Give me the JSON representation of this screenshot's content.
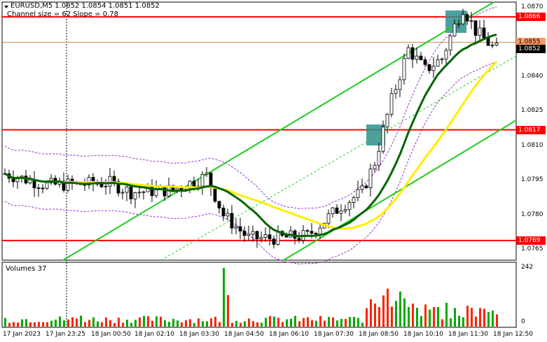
{
  "header": {
    "symbol_line": "EURUSD,M5  1.0852 1.0854 1.0851 1.0852",
    "channel_line": "Channel size = 62 Slope = 0.78"
  },
  "volumes": {
    "label": "Volumes 37",
    "scale_max": "242",
    "scale_min": "0"
  },
  "colors": {
    "background": "#ffffff",
    "candles": "#000000",
    "level_line": "#ff0000",
    "channel": "#22cc22",
    "ma_fast": "#006400",
    "ma_slow": "#ffee00",
    "envelope": "#9933cc",
    "volume_up": "#00aa00",
    "volume_down": "#ff2200",
    "highlight_box": "#2f8f8f"
  },
  "price_levels": [
    {
      "label": "1.0866",
      "value": 1.0866,
      "style": "red"
    },
    {
      "label": "1.0855",
      "value": 1.0855,
      "style": "orange"
    },
    {
      "label": "1.0852",
      "value": 1.0852,
      "style": "black"
    },
    {
      "label": "1.0817",
      "value": 1.0817,
      "style": "red"
    },
    {
      "label": "1.0769",
      "value": 1.0769,
      "style": "red"
    }
  ],
  "price_axis_ticks": [
    {
      "label": "1.0870",
      "value": 1.087
    },
    {
      "label": "1.0840",
      "value": 1.084
    },
    {
      "label": "1.0825",
      "value": 1.0825
    },
    {
      "label": "1.0810",
      "value": 1.081
    },
    {
      "label": "1.0795",
      "value": 1.0795
    },
    {
      "label": "1.0780",
      "value": 1.078
    },
    {
      "label": "1.0765",
      "value": 1.0765
    }
  ],
  "time_axis_ticks": [
    "17 Jan 2023",
    "17 Jan 23:25",
    "18 Jan 00:50",
    "18 Jan 02:10",
    "18 Jan 03:30",
    "18 Jan 04:50",
    "18 Jan 06:10",
    "18 Jan 07:30",
    "18 Jan 08:50",
    "18 Jan 10:10",
    "18 Jan 11:30",
    "18 Jan 12:50"
  ]
}
